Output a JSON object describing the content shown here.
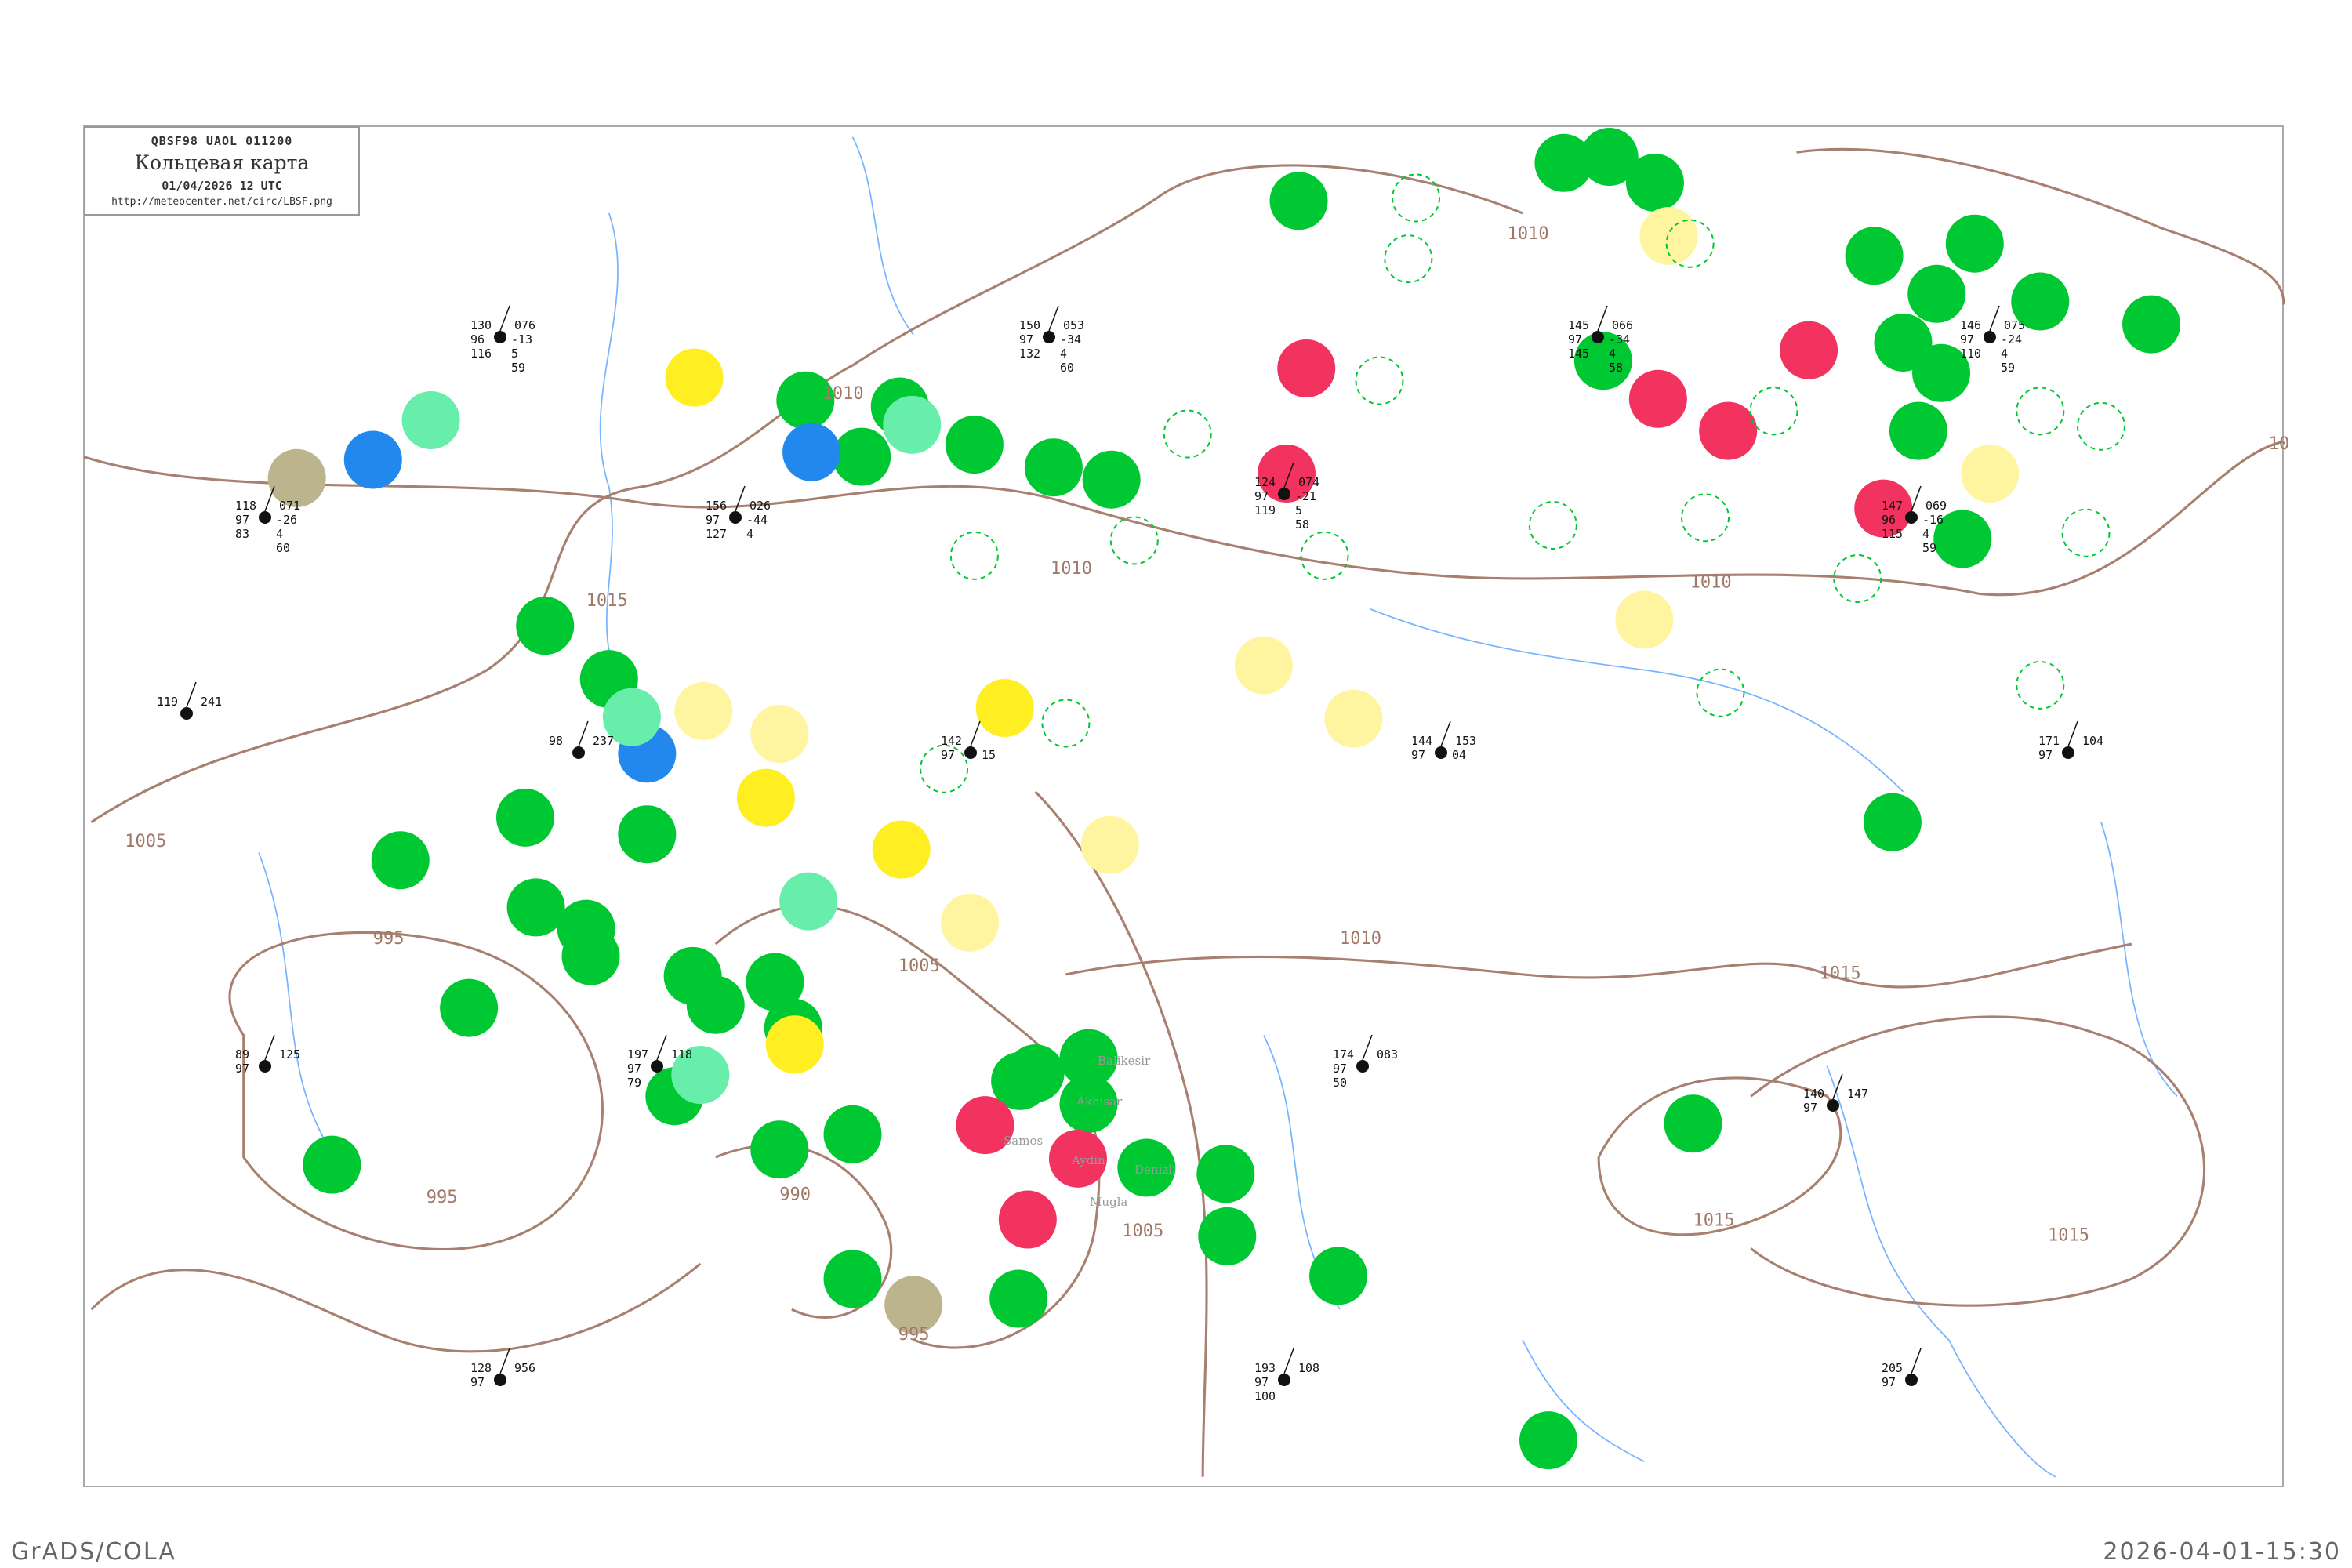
{
  "header": {
    "code_line": "QBSF98  UAOL  011200",
    "title": "Кольцевая карта",
    "datetime": "01/04/2026 12 UTC",
    "url": "http://meteocenter.net/circ/LBSF.png"
  },
  "footer": {
    "left": "GrADS/COLA",
    "right": "2026-04-01-15:30"
  },
  "colors": {
    "isobar": "#a88070",
    "river": "#77b4ff",
    "circle_green": "#00c832",
    "circle_red": "#f2325f",
    "circle_yellow": "#ffee22",
    "circle_pale_yellow": "#fff5a0",
    "circle_blue": "#2288ee",
    "circle_teal": "#66eeaa",
    "circle_olive": "#bcb48c"
  },
  "isobar_labels": [
    "1010",
    "1015",
    "1010",
    "1010",
    "1005",
    "1005",
    "995",
    "995",
    "995",
    "990",
    "1010",
    "1015",
    "1015",
    "1005",
    "1015",
    "10",
    "1010"
  ],
  "stations": [
    {
      "p": "130",
      "t": "96",
      "td": "-13",
      "v": "076",
      "n": "116",
      "c": "5",
      "id": "59"
    },
    {
      "p": "150",
      "t": "97",
      "td": "-34",
      "v": "053",
      "n": "132",
      "c": "4",
      "id": "60"
    },
    {
      "p": "145",
      "t": "97",
      "td": "-34",
      "v": "066",
      "n": "145",
      "c": "4",
      "id": "58"
    },
    {
      "p": "146",
      "t": "97",
      "td": "-24",
      "v": "075",
      "n": "110",
      "c": "4",
      "id": "59"
    },
    {
      "p": "118",
      "t": "97",
      "td": "-26",
      "v": "071",
      "n": "83",
      "c": "4",
      "id": "60"
    },
    {
      "p": "156",
      "t": "97",
      "td": "-44",
      "v": "026",
      "n": "127",
      "c": "4",
      "id": ""
    },
    {
      "p": "124",
      "t": "97",
      "td": "-21",
      "v": "074",
      "n": "119",
      "c": "5",
      "id": "58"
    },
    {
      "p": "147",
      "t": "96",
      "td": "-16",
      "v": "069",
      "n": "115",
      "c": "4",
      "id": "59"
    },
    {
      "p": "119",
      "t": "",
      "td": "",
      "v": "241",
      "n": "",
      "c": "",
      "id": ""
    },
    {
      "p": "98",
      "t": "",
      "td": "",
      "v": "237",
      "n": "",
      "c": "",
      "id": ""
    },
    {
      "p": "142",
      "t": "97",
      "td": "15",
      "v": "",
      "n": "",
      "c": "",
      "id": ""
    },
    {
      "p": "144",
      "t": "97",
      "td": "04",
      "v": "153",
      "n": "",
      "c": "",
      "id": ""
    },
    {
      "p": "171",
      "t": "97",
      "td": "",
      "v": "104",
      "n": "",
      "c": "",
      "id": ""
    },
    {
      "p": "89",
      "t": "97",
      "td": "",
      "v": "125",
      "n": "",
      "c": "",
      "id": ""
    },
    {
      "p": "197",
      "t": "97",
      "td": "",
      "v": "118",
      "n": "79",
      "c": "",
      "id": ""
    },
    {
      "p": "174",
      "t": "97",
      "td": "",
      "v": "083",
      "n": "50",
      "c": "",
      "id": ""
    },
    {
      "p": "140",
      "t": "97",
      "td": "",
      "v": "147",
      "n": "",
      "c": "",
      "id": ""
    },
    {
      "p": "128",
      "t": "97",
      "td": "",
      "v": "956",
      "n": "",
      "c": "",
      "id": ""
    },
    {
      "p": "193",
      "t": "97",
      "td": "",
      "v": "108",
      "n": "100",
      "c": "",
      "id": ""
    },
    {
      "p": "205",
      "t": "97",
      "td": "",
      "v": "",
      "n": "",
      "c": "",
      "id": ""
    }
  ],
  "place_labels": [
    "Balikesir",
    "Akhisar",
    "Aydin",
    "Denizli",
    "Mugla",
    "Samos"
  ]
}
